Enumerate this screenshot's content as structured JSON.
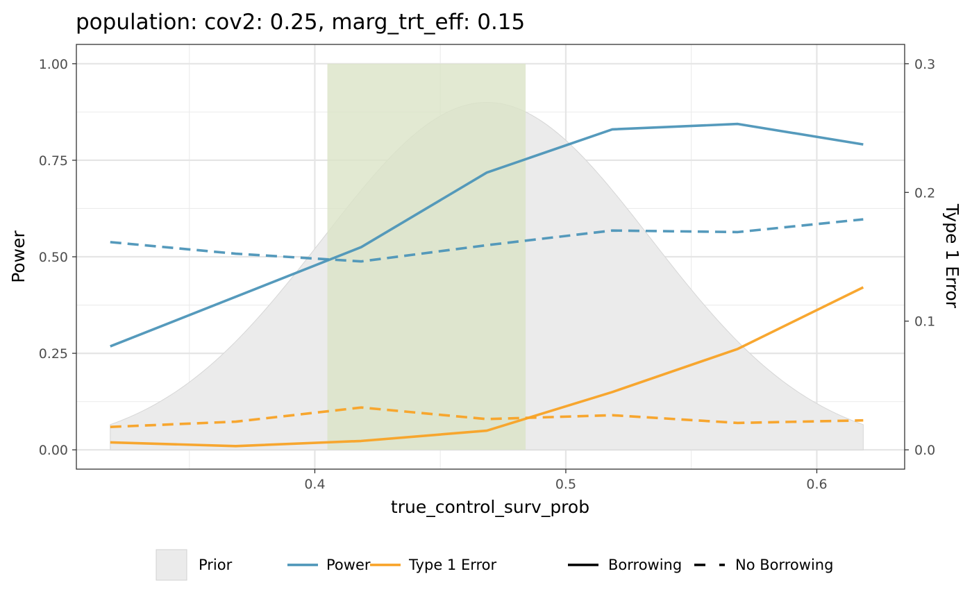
{
  "chart_data": {
    "type": "line",
    "title": "population: cov2: 0.25, marg_trt_eff: 0.15",
    "xlabel": "true_control_surv_prob",
    "ylabel": "Power",
    "y2label": "Type 1 Error",
    "xlim": [
      0.305,
      0.635
    ],
    "ylim": [
      -0.05,
      1.05
    ],
    "y2lim": [
      -0.015,
      0.315
    ],
    "x_ticks": [
      0.4,
      0.5,
      0.6
    ],
    "x_tick_labels": [
      "0.4",
      "0.5",
      "0.6"
    ],
    "y_ticks": [
      0,
      0.25,
      0.5,
      0.75,
      1.0
    ],
    "y_tick_labels": [
      "0.00",
      "0.25",
      "0.50",
      "0.75",
      "1.00"
    ],
    "y2_ticks": [
      0,
      0.1,
      0.2,
      0.3
    ],
    "y2_tick_labels": [
      "0.0",
      "0.1",
      "0.2",
      "0.3"
    ],
    "x_minor_ticks": [
      0.35,
      0.45,
      0.55
    ],
    "y_minor_ticks": [
      0.125,
      0.375,
      0.625,
      0.875
    ],
    "grid": true,
    "legend_position": "bottom",
    "highlight_band": {
      "x": [
        0.405,
        0.484
      ],
      "y": [
        0,
        1.0
      ],
      "color": "#dbe3c7"
    },
    "prior": {
      "name": "Prior",
      "color": "#ebebeb",
      "mean": 0.4685,
      "sd": 0.0655,
      "peak": 0.9,
      "x_range": [
        0.3185,
        0.6185
      ]
    },
    "series": [
      {
        "name": "Power",
        "line_type": "Borrowing",
        "axis": "left",
        "color": "#4c95b8",
        "dash": "solid",
        "x": [
          0.3185,
          0.4185,
          0.4685,
          0.5185,
          0.5685,
          0.6185
        ],
        "y": [
          0.268,
          0.525,
          0.718,
          0.83,
          0.844,
          0.791
        ]
      },
      {
        "name": "Power",
        "line_type": "No Borrowing",
        "axis": "left",
        "color": "#4c95b8",
        "dash": "dashed",
        "x": [
          0.3185,
          0.3685,
          0.4185,
          0.4685,
          0.5185,
          0.5685,
          0.6185
        ],
        "y": [
          0.538,
          0.508,
          0.488,
          0.53,
          0.568,
          0.564,
          0.597
        ]
      },
      {
        "name": "Type 1 Error",
        "line_type": "Borrowing",
        "axis": "right",
        "color": "#f8a225",
        "dash": "solid",
        "x": [
          0.3185,
          0.3685,
          0.4185,
          0.4685,
          0.5185,
          0.5685,
          0.6185
        ],
        "y": [
          0.0058,
          0.0029,
          0.0069,
          0.0149,
          0.0449,
          0.0784,
          0.1263
        ]
      },
      {
        "name": "Type 1 Error",
        "line_type": "No Borrowing",
        "axis": "right",
        "color": "#f8a225",
        "dash": "dashed",
        "x": [
          0.3185,
          0.3685,
          0.4185,
          0.4685,
          0.5185,
          0.5685,
          0.6185
        ],
        "y": [
          0.0178,
          0.0219,
          0.0329,
          0.0239,
          0.0269,
          0.0209,
          0.0229
        ]
      }
    ],
    "legend": {
      "fill_items": [
        {
          "label": "Prior",
          "color": "#ebebeb"
        }
      ],
      "color_items": [
        {
          "label": "Power",
          "color": "#4c95b8"
        },
        {
          "label": "Type 1 Error",
          "color": "#f8a225"
        }
      ],
      "linetype_items": [
        {
          "label": "Borrowing",
          "dash": "solid"
        },
        {
          "label": "No Borrowing",
          "dash": "dashed"
        }
      ]
    }
  }
}
